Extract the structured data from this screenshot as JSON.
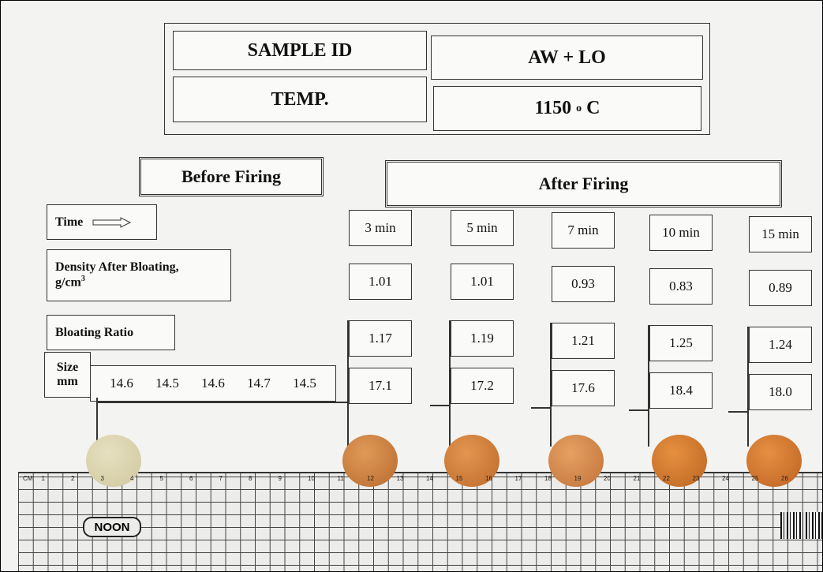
{
  "header": {
    "rows": [
      {
        "label": "SAMPLE ID",
        "value": "AW + LO"
      },
      {
        "label": "TEMP.",
        "value": "1150",
        "value_sup": "o",
        "value_unit": "C"
      }
    ]
  },
  "sections": {
    "before": "Before Firing",
    "after": "After Firing"
  },
  "rows": {
    "time": {
      "label": "Time"
    },
    "density": {
      "label": "Density After Bloating,",
      "unit": "g/cm",
      "unit_sup": "3"
    },
    "ratio": {
      "label": "Bloating Ratio"
    },
    "size": {
      "label": "Size",
      "unit": "mm"
    }
  },
  "before_sizes": [
    "14.6",
    "14.5",
    "14.6",
    "14.7",
    "14.5"
  ],
  "after": {
    "times": [
      "3 min",
      "5 min",
      "7 min",
      "10 min",
      "15 min"
    ],
    "density": [
      "1.01",
      "1.01",
      "0.93",
      "0.83",
      "0.89"
    ],
    "ratio": [
      "1.17",
      "1.19",
      "1.21",
      "1.25",
      "1.24"
    ],
    "size": [
      "17.1",
      "17.2",
      "17.6",
      "18.4",
      "18.0"
    ]
  },
  "ruler": {
    "brand": "NOON",
    "unit": "CM",
    "labels": [
      1,
      2,
      3,
      4,
      5,
      6,
      7,
      8,
      9,
      10,
      11,
      12,
      13,
      14,
      15,
      16,
      17,
      18,
      19,
      20,
      21,
      22,
      23,
      24,
      25,
      26
    ]
  }
}
